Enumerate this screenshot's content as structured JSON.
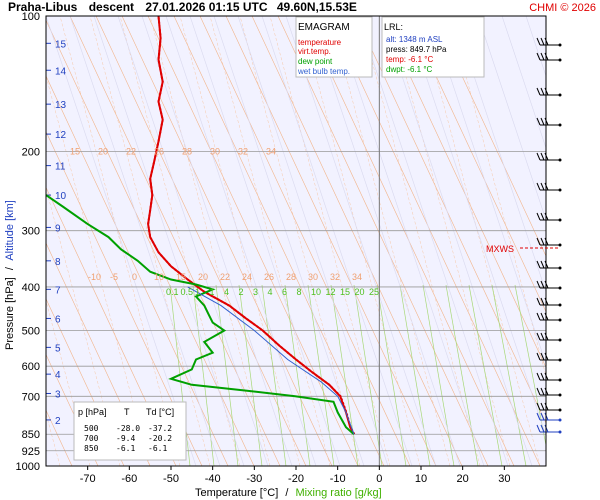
{
  "header": {
    "station": "Praha-Libus",
    "mode": "descent",
    "datetime": "27.01.2026 01:15 UTC",
    "coords": "49.60N,15.53E",
    "copyright": "CHMI © 2026"
  },
  "legend": {
    "title": "EMAGRAM",
    "items": [
      {
        "label": "temperature",
        "color": "#e00000"
      },
      {
        "label": "virt.temp.",
        "color": "#e00000"
      },
      {
        "label": "dew point",
        "color": "#00a000"
      },
      {
        "label": "wet bulb temp.",
        "color": "#3060d0"
      }
    ]
  },
  "lrl": {
    "title": "LRL:",
    "alt": "alt: 1348 m ASL",
    "press": "press: 849.7 hPa",
    "temp": "temp: -6.1 °C",
    "dwpt": "dwpt: -6.1 °C"
  },
  "table": {
    "headers": [
      "p [hPa]",
      "T",
      "Td [°C]"
    ],
    "rows": [
      [
        "500",
        "-28.0",
        "-37.2"
      ],
      [
        "700",
        "-9.4",
        "-20.2"
      ],
      [
        "850",
        "-6.1",
        "-6.1"
      ]
    ]
  },
  "mxws_label": "MXWS",
  "chart_data": {
    "type": "line",
    "title": "Praha-Libus descent 27.01.2026 01:15 UTC 49.60N,15.53E",
    "xlabel": "Temperature [°C]",
    "xlabel_sep": "/",
    "xlabel2": "Mixing ratio [g/kg]",
    "ylabel": "Pressure [hPa]",
    "ylabel_sep": "/",
    "ylabel2": "Altitude [km]",
    "xlim": [
      -80,
      40
    ],
    "ylim": [
      1000,
      100
    ],
    "y_scale": "log",
    "x_ticks": [
      -70,
      -60,
      -50,
      -40,
      -30,
      -20,
      -10,
      0,
      10,
      20,
      30
    ],
    "y_ticks": [
      100,
      200,
      300,
      400,
      500,
      600,
      700,
      850,
      925,
      1000
    ],
    "y_labeled_ticks": [
      100,
      200,
      300,
      400,
      500,
      600,
      700,
      850,
      925,
      1000
    ],
    "altitude_ticks_km": [
      {
        "km": "2",
        "p": 790
      },
      {
        "km": "3",
        "p": 690
      },
      {
        "km": "4",
        "p": 625
      },
      {
        "km": "5",
        "p": 545
      },
      {
        "km": "6",
        "p": 470
      },
      {
        "km": "7",
        "p": 405
      },
      {
        "km": "8",
        "p": 350
      },
      {
        "km": "9",
        "p": 295
      },
      {
        "km": "10",
        "p": 250
      },
      {
        "km": "11",
        "p": 215
      },
      {
        "km": "12",
        "p": 183
      },
      {
        "km": "13",
        "p": 157
      },
      {
        "km": "14",
        "p": 132
      },
      {
        "km": "15",
        "p": 115
      }
    ],
    "isotherm_labels_row1": {
      "p": 200,
      "values": [
        "15",
        "20",
        "22",
        "26",
        "28",
        "30",
        "32",
        "34"
      ]
    },
    "isotherm_labels_row2": {
      "p": 380,
      "values": [
        "-10",
        "-5",
        "0",
        "10",
        "15",
        "20",
        "22",
        "24",
        "26",
        "28",
        "30",
        "32",
        "34"
      ]
    },
    "mixing_ratio_labels": {
      "p": 410,
      "values": [
        "0.1",
        "0.5",
        "1",
        "1",
        "4",
        "2",
        "3",
        "4",
        "6",
        "8",
        "10",
        "12",
        "15",
        "20",
        "25"
      ]
    },
    "series": [
      {
        "name": "temperature",
        "color": "#e00000",
        "points": [
          [
            -6.1,
            849.7
          ],
          [
            -7,
            820
          ],
          [
            -8,
            760
          ],
          [
            -9.4,
            700
          ],
          [
            -12,
            660
          ],
          [
            -16,
            620
          ],
          [
            -20,
            580
          ],
          [
            -24,
            540
          ],
          [
            -28,
            500
          ],
          [
            -32,
            470
          ],
          [
            -36,
            440
          ],
          [
            -42,
            410
          ],
          [
            -46,
            385
          ],
          [
            -50,
            360
          ],
          [
            -53,
            335
          ],
          [
            -55,
            310
          ],
          [
            -55.5,
            290
          ],
          [
            -55,
            270
          ],
          [
            -54.5,
            250
          ],
          [
            -55,
            230
          ],
          [
            -54,
            210
          ],
          [
            -53,
            190
          ],
          [
            -52,
            170
          ],
          [
            -53,
            155
          ],
          [
            -52,
            140
          ],
          [
            -53,
            125
          ],
          [
            -52.5,
            112
          ],
          [
            -53,
            100
          ]
        ]
      },
      {
        "name": "virt.temp.",
        "color": "#e00000",
        "points": [
          [
            -6,
            849.7
          ],
          [
            -6.9,
            820
          ],
          [
            -7.9,
            760
          ],
          [
            -9.3,
            700
          ],
          [
            -12,
            660
          ],
          [
            -16,
            620
          ],
          [
            -20,
            580
          ],
          [
            -24,
            540
          ],
          [
            -28,
            500
          ],
          [
            -32,
            470
          ],
          [
            -36,
            440
          ],
          [
            -42,
            410
          ],
          [
            -46,
            385
          ],
          [
            -50,
            360
          ],
          [
            -53,
            335
          ],
          [
            -55,
            310
          ],
          [
            -55.5,
            290
          ],
          [
            -55,
            270
          ],
          [
            -54.5,
            250
          ],
          [
            -55,
            230
          ],
          [
            -54,
            210
          ],
          [
            -53,
            190
          ],
          [
            -52,
            170
          ],
          [
            -53,
            155
          ],
          [
            -52,
            140
          ],
          [
            -53,
            125
          ],
          [
            -52.5,
            112
          ],
          [
            -53,
            100
          ]
        ]
      },
      {
        "name": "dew point",
        "color": "#00a000",
        "points": [
          [
            -6.1,
            849.7
          ],
          [
            -8,
            820
          ],
          [
            -10,
            760
          ],
          [
            -11,
            720
          ],
          [
            -20.2,
            700
          ],
          [
            -32,
            680
          ],
          [
            -45,
            660
          ],
          [
            -50,
            640
          ],
          [
            -45,
            610
          ],
          [
            -44,
            580
          ],
          [
            -40,
            560
          ],
          [
            -42,
            530
          ],
          [
            -37.2,
            500
          ],
          [
            -40,
            480
          ],
          [
            -41,
            460
          ],
          [
            -42,
            440
          ],
          [
            -44,
            420
          ],
          [
            -40,
            405
          ],
          [
            -44,
            395
          ],
          [
            -50,
            385
          ],
          [
            -55,
            370
          ],
          [
            -58,
            350
          ],
          [
            -62,
            330
          ],
          [
            -65,
            310
          ],
          [
            -70,
            290
          ],
          [
            -76,
            265
          ],
          [
            -80,
            250
          ]
        ]
      },
      {
        "name": "wet bulb temp.",
        "color": "#3060d0",
        "points": [
          [
            -6.1,
            849.7
          ],
          [
            -8,
            760
          ],
          [
            -10,
            700
          ],
          [
            -14,
            650
          ],
          [
            -22,
            580
          ],
          [
            -30,
            500
          ],
          [
            -38,
            440
          ],
          [
            -46,
            400
          ]
        ]
      }
    ]
  }
}
